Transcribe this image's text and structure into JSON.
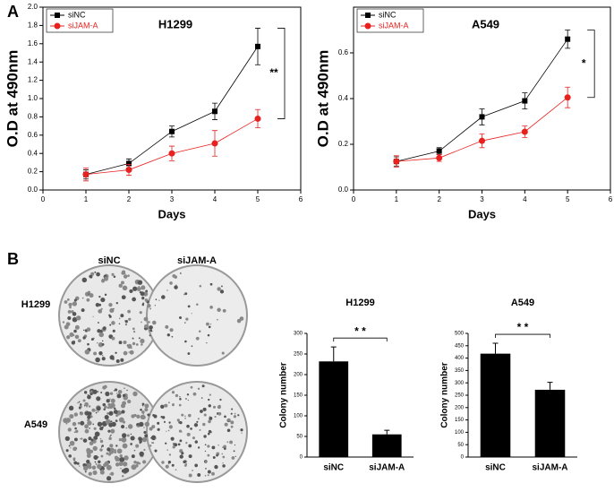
{
  "panels": {
    "a": "A",
    "b": "B"
  },
  "colony_assay": {
    "columns": [
      "siNC",
      "siJAM-A"
    ],
    "rows": [
      "H1299",
      "A549"
    ]
  },
  "chart_data": [
    {
      "type": "line",
      "title": "H1299",
      "xlabel": "Days",
      "ylabel": "O.D at 490nm",
      "x": [
        1,
        2,
        3,
        4,
        5
      ],
      "xlim": [
        0,
        6
      ],
      "xticks": [
        0,
        1,
        2,
        3,
        4,
        5,
        6
      ],
      "ylim": [
        0,
        2.0
      ],
      "yticks": [
        {
          "value": 0,
          "label": "0.0"
        },
        0.2,
        0.4,
        0.6,
        0.8,
        {
          "value": 1,
          "label": "1.0"
        },
        1.2,
        1.4,
        1.6,
        1.8,
        {
          "value": 2,
          "label": "2.0"
        }
      ],
      "legend": "upper left",
      "annotation": "**",
      "series": [
        {
          "name": "siNC",
          "color": "#000000",
          "marker": "square",
          "values": [
            0.17,
            0.29,
            0.64,
            0.86,
            1.57
          ],
          "errors": [
            0.05,
            0.05,
            0.06,
            0.09,
            0.2
          ]
        },
        {
          "name": "siJAM-A",
          "color": "#e8211f",
          "marker": "circle",
          "values": [
            0.17,
            0.22,
            0.4,
            0.51,
            0.78
          ],
          "errors": [
            0.07,
            0.06,
            0.08,
            0.14,
            0.1
          ]
        }
      ]
    },
    {
      "type": "line",
      "title": "A549",
      "xlabel": "Days",
      "ylabel": "O.D at 490nm",
      "x": [
        1,
        2,
        3,
        4,
        5
      ],
      "xlim": [
        0,
        6
      ],
      "xticks": [
        0,
        1,
        2,
        3,
        4,
        5,
        6
      ],
      "ylim": [
        0,
        0.8
      ],
      "yticks": [
        {
          "value": 0,
          "label": "0.0"
        },
        0.2,
        0.4,
        0.6
      ],
      "legend": "upper left",
      "annotation": "*",
      "series": [
        {
          "name": "siNC",
          "color": "#000000",
          "marker": "square",
          "values": [
            0.125,
            0.17,
            0.32,
            0.39,
            0.66
          ],
          "errors": [
            0.02,
            0.015,
            0.035,
            0.035,
            0.04
          ]
        },
        {
          "name": "siJAM-A",
          "color": "#e8211f",
          "marker": "circle",
          "values": [
            0.125,
            0.14,
            0.215,
            0.255,
            0.405
          ],
          "errors": [
            0.025,
            0.015,
            0.03,
            0.025,
            0.045
          ]
        }
      ]
    },
    {
      "type": "bar",
      "title": "H1299",
      "ylabel": "Colony number",
      "categories": [
        "siNC",
        "siJAM-A"
      ],
      "values": [
        232,
        55
      ],
      "errors": [
        35,
        10
      ],
      "color": "#000000",
      "ylim": [
        0,
        300
      ],
      "yticks": [
        0,
        50,
        100,
        150,
        200,
        250,
        300
      ],
      "annotation": "* *"
    },
    {
      "type": "bar",
      "title": "A549",
      "ylabel": "Colony number",
      "categories": [
        "siNC",
        "siJAM-A"
      ],
      "values": [
        418,
        272
      ],
      "errors": [
        42,
        30
      ],
      "color": "#000000",
      "ylim": [
        0,
        500
      ],
      "yticks": [
        0,
        50,
        100,
        150,
        200,
        250,
        300,
        350,
        400,
        450,
        500
      ],
      "annotation": "* *"
    }
  ]
}
